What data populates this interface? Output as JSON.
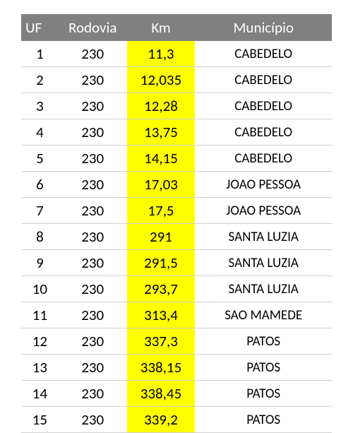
{
  "table": {
    "header_bg": "#808080",
    "header_fg": "#ffffff",
    "highlight_bg": "#ffff00",
    "row_border": "#d0d0d0",
    "font_family": "Calibri, Arial, sans-serif",
    "header_fontsize": 21,
    "cell_fontsize": 21,
    "municipio_fontsize": 19,
    "columns": [
      {
        "key": "uf",
        "label": "UF"
      },
      {
        "key": "rodovia",
        "label": "Rodovia"
      },
      {
        "key": "km",
        "label": "Km"
      },
      {
        "key": "municipio",
        "label": "Município"
      }
    ],
    "rows": [
      {
        "uf": "1",
        "rodovia": "230",
        "km": "11,3",
        "municipio": "CABEDELO"
      },
      {
        "uf": "2",
        "rodovia": "230",
        "km": "12,035",
        "municipio": "CABEDELO"
      },
      {
        "uf": "3",
        "rodovia": "230",
        "km": "12,28",
        "municipio": "CABEDELO"
      },
      {
        "uf": "4",
        "rodovia": "230",
        "km": "13,75",
        "municipio": "CABEDELO"
      },
      {
        "uf": "5",
        "rodovia": "230",
        "km": "14,15",
        "municipio": "CABEDELO"
      },
      {
        "uf": "6",
        "rodovia": "230",
        "km": "17,03",
        "municipio": "JOAO PESSOA"
      },
      {
        "uf": "7",
        "rodovia": "230",
        "km": "17,5",
        "municipio": "JOAO PESSOA"
      },
      {
        "uf": "8",
        "rodovia": "230",
        "km": "291",
        "municipio": "SANTA LUZIA"
      },
      {
        "uf": "9",
        "rodovia": "230",
        "km": "291,5",
        "municipio": "SANTA LUZIA"
      },
      {
        "uf": "10",
        "rodovia": "230",
        "km": "293,7",
        "municipio": "SANTA LUZIA"
      },
      {
        "uf": "11",
        "rodovia": "230",
        "km": "313,4",
        "municipio": "SAO MAMEDE"
      },
      {
        "uf": "12",
        "rodovia": "230",
        "km": "337,3",
        "municipio": "PATOS"
      },
      {
        "uf": "13",
        "rodovia": "230",
        "km": "338,15",
        "municipio": "PATOS"
      },
      {
        "uf": "14",
        "rodovia": "230",
        "km": "338,45",
        "municipio": "PATOS"
      },
      {
        "uf": "15",
        "rodovia": "230",
        "km": "339,2",
        "municipio": "PATOS"
      }
    ]
  }
}
